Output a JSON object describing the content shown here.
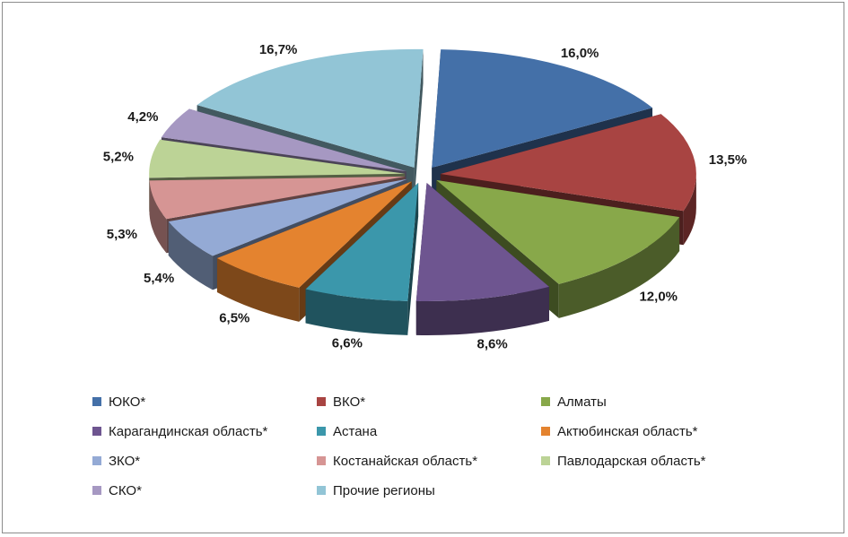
{
  "chart_data": {
    "type": "pie",
    "style": "3d-exploded",
    "unit": "%",
    "slices": [
      {
        "name": "ЮКО*",
        "value": 16.0,
        "label": "16,0%",
        "color": "#4470a8"
      },
      {
        "name": "ВКО*",
        "value": 13.5,
        "label": "13,5%",
        "color": "#a84442"
      },
      {
        "name": "Алматы",
        "value": 12.0,
        "label": "12,0%",
        "color": "#88a84a"
      },
      {
        "name": "Карагандинская область*",
        "value": 8.6,
        "label": "8,6%",
        "color": "#6e5590"
      },
      {
        "name": "Астана",
        "value": 6.6,
        "label": "6,6%",
        "color": "#3b97ab"
      },
      {
        "name": "Актюбинская область*",
        "value": 6.5,
        "label": "6,5%",
        "color": "#e4832f"
      },
      {
        "name": "ЗКО*",
        "value": 5.4,
        "label": "5,4%",
        "color": "#94aad5"
      },
      {
        "name": "Костанайская область*",
        "value": 5.3,
        "label": "5,3%",
        "color": "#d69594"
      },
      {
        "name": "Павлодарская область*",
        "value": 5.2,
        "label": "5,2%",
        "color": "#bcd396"
      },
      {
        "name": "СКО*",
        "value": 4.2,
        "label": "4,2%",
        "color": "#a698c2"
      },
      {
        "name": "Прочие регионы",
        "value": 16.7,
        "label": "16,7%",
        "color": "#92c5d6"
      }
    ],
    "legend_position": "bottom"
  }
}
